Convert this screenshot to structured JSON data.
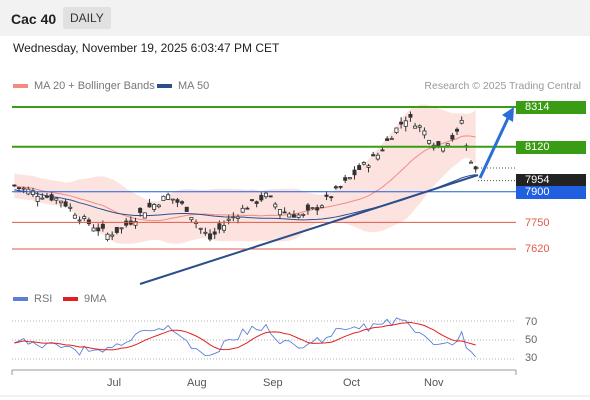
{
  "header": {
    "instrument": "Cac 40",
    "timeframe": "DAILY"
  },
  "datetime": "Wednesday, November 19, 2025 6:03:47 PM CET",
  "legend": {
    "bb": {
      "label": "MA 20 + Bollinger Bands",
      "color": "#f28b82"
    },
    "ma50": {
      "label": "MA 50",
      "color": "#2c4f8c"
    },
    "rsi": {
      "label": "RSI",
      "color": "#5b7fd6"
    },
    "rsi_ma": {
      "label": "9MA",
      "color": "#e02020"
    }
  },
  "copyright": "Research © 2025 Trading Central",
  "levels": {
    "r2": {
      "label": "8314",
      "color": "#3a9c14",
      "style": "box"
    },
    "r1": {
      "label": "8120",
      "color": "#3a9c14",
      "style": "box"
    },
    "last": {
      "label": "7954",
      "color": "#222222",
      "style": "box"
    },
    "pivot": {
      "label": "7900",
      "color": "#1f5fe0",
      "style": "box"
    },
    "s1": {
      "label": "7750",
      "color": "#e05a4a",
      "style": "plain"
    },
    "s2": {
      "label": "7620",
      "color": "#e05a4a",
      "style": "plain"
    }
  },
  "rsi_axis": [
    "70",
    "50",
    "30"
  ],
  "months": [
    "Jul",
    "Aug",
    "Sep",
    "Oct",
    "Nov"
  ]
}
